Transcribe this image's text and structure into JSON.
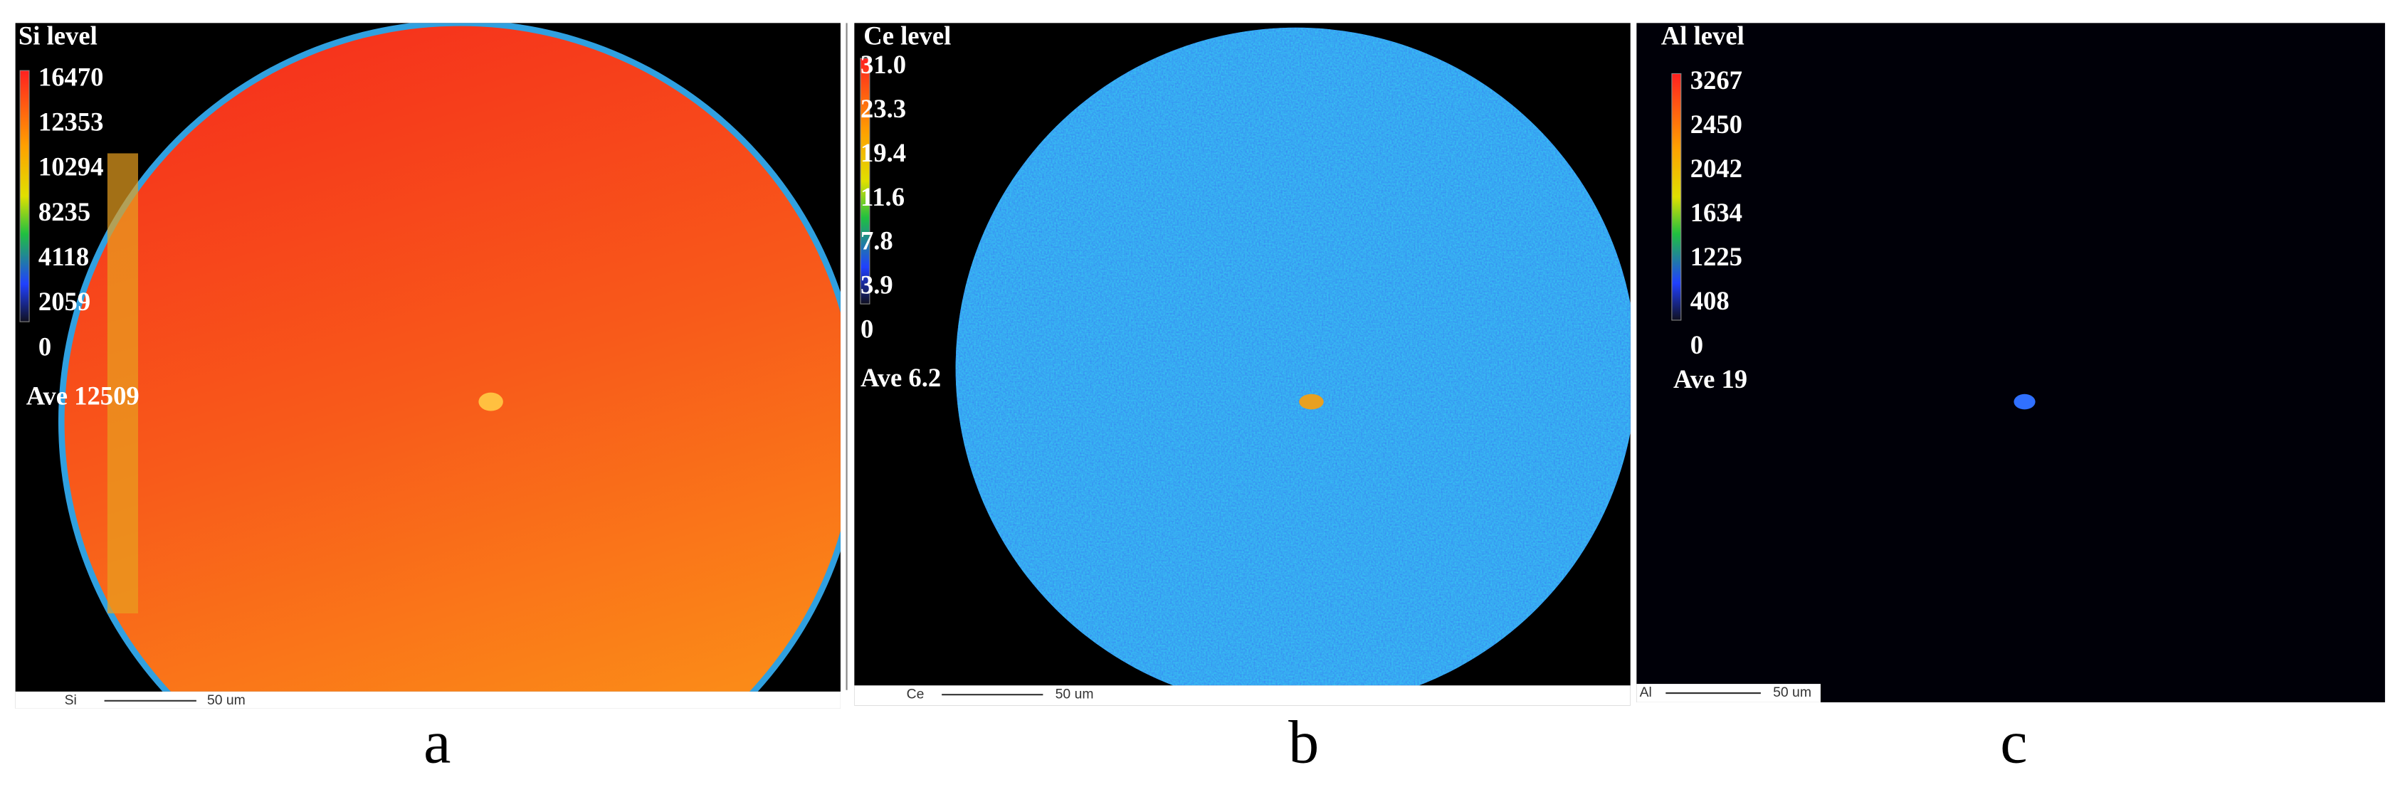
{
  "panels": [
    {
      "level_title": "Si level",
      "scale": [
        "16470",
        "12353",
        "10294",
        "8235",
        "4118",
        "2059",
        "0"
      ],
      "average": "Ave 12509",
      "scalebar_element": "Si",
      "scalebar_length": "50 um",
      "label": "a"
    },
    {
      "level_title": "Ce level",
      "scale": [
        "31.0",
        "23.3",
        "19.4",
        "11.6",
        "7.8",
        "3.9",
        "0"
      ],
      "average": "Ave 6.2",
      "scalebar_element": "Ce",
      "scalebar_length": "50 um",
      "label": "b"
    },
    {
      "level_title": "Al level",
      "scale": [
        "3267",
        "2450",
        "2042",
        "1634",
        "1225",
        "408",
        "0"
      ],
      "average": "Ave 19",
      "scalebar_element": "Al",
      "scalebar_length": "50 um",
      "label": "c"
    }
  ]
}
